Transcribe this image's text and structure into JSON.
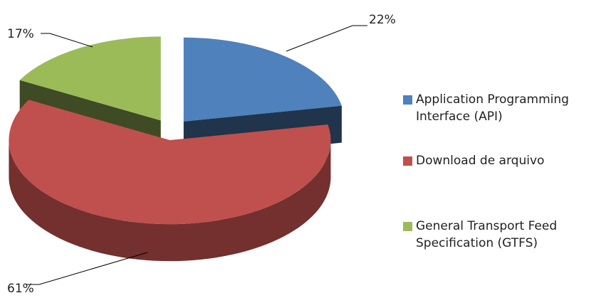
{
  "chart_data": {
    "type": "pie",
    "categories": [
      "Application Programming Interface (API)",
      "Download de arquivo",
      "General Transport Feed Specification (GTFS)"
    ],
    "values": [
      22,
      61,
      17
    ],
    "value_labels": [
      "22%",
      "61%",
      "17%"
    ],
    "colors": [
      "#4f81bd",
      "#c0504d",
      "#9bbb59"
    ],
    "legend": "right"
  }
}
